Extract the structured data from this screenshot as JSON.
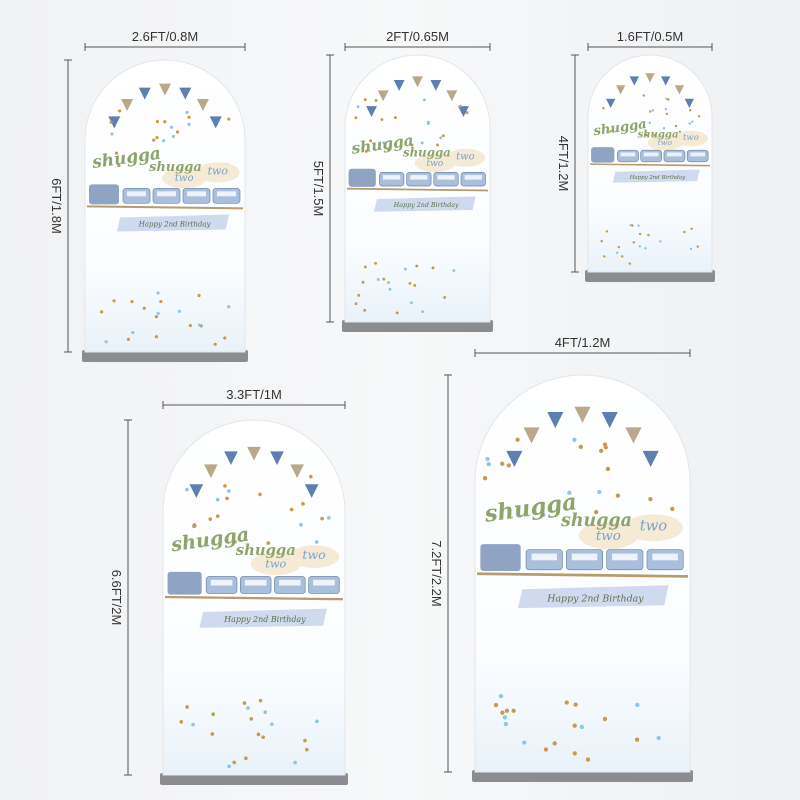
{
  "items": [
    {
      "width": "2.6FT/0.8M",
      "height": "6FT/1.8M"
    },
    {
      "width": "2FT/0.65M",
      "height": "5FT/1.5M"
    },
    {
      "width": "1.6FT/0.5M",
      "height": "4FT/1.2M"
    },
    {
      "width": "3.3FT/1M",
      "height": "6.6FT/2M"
    },
    {
      "width": "4FT/1.2M",
      "height": "7.2FT/2.2M"
    }
  ],
  "design": {
    "word": "shugga",
    "number": "two",
    "banner": "Happy 2nd Birthday"
  }
}
